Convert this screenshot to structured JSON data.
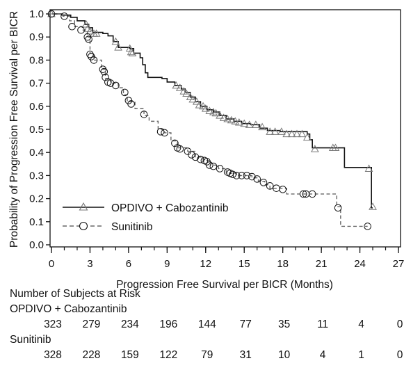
{
  "chart_data": {
    "type": "line",
    "subtype": "kaplan-meier",
    "title": "",
    "xlabel": "Progression Free Survival per BICR (Months)",
    "ylabel": "Probability of Progression Free Survival per BICR",
    "xlim": [
      0,
      27
    ],
    "ylim": [
      0.0,
      1.0
    ],
    "x_ticks": [
      0,
      3,
      6,
      9,
      12,
      15,
      18,
      21,
      24,
      27
    ],
    "x_tick_labels": [
      "0",
      "3",
      "6",
      "9",
      "12",
      "15",
      "18",
      "21",
      "24",
      "27"
    ],
    "x_minor_step": 1,
    "y_ticks": [
      0.0,
      0.1,
      0.2,
      0.3,
      0.4,
      0.5,
      0.6,
      0.7,
      0.8,
      0.9,
      1.0
    ],
    "y_tick_labels": [
      "0.0",
      "0.1",
      "0.2",
      "0.3",
      "0.4",
      "0.5",
      "0.6",
      "0.7",
      "0.8",
      "0.9",
      "1.0"
    ],
    "grid": false,
    "legend_position": "bottom-left",
    "series": [
      {
        "name": "OPDIVO + Cabozantinib",
        "line_style": "solid",
        "marker": "triangle",
        "color": "#111111",
        "marker_color": "#777777",
        "steps": [
          [
            0,
            1.0
          ],
          [
            0.8,
            0.995
          ],
          [
            1.5,
            0.985
          ],
          [
            2.0,
            0.97
          ],
          [
            2.6,
            0.955
          ],
          [
            2.9,
            0.94
          ],
          [
            3.2,
            0.92
          ],
          [
            4.0,
            0.915
          ],
          [
            4.4,
            0.905
          ],
          [
            4.8,
            0.88
          ],
          [
            5.2,
            0.855
          ],
          [
            6.1,
            0.85
          ],
          [
            6.4,
            0.83
          ],
          [
            6.9,
            0.81
          ],
          [
            7.1,
            0.78
          ],
          [
            7.3,
            0.745
          ],
          [
            7.5,
            0.725
          ],
          [
            8.6,
            0.72
          ],
          [
            9.0,
            0.705
          ],
          [
            9.6,
            0.69
          ],
          [
            10.1,
            0.675
          ],
          [
            10.4,
            0.66
          ],
          [
            10.8,
            0.64
          ],
          [
            11.2,
            0.62
          ],
          [
            11.6,
            0.6
          ],
          [
            12.1,
            0.585
          ],
          [
            12.6,
            0.575
          ],
          [
            13.1,
            0.56
          ],
          [
            13.6,
            0.545
          ],
          [
            14.2,
            0.535
          ],
          [
            14.8,
            0.525
          ],
          [
            15.5,
            0.52
          ],
          [
            16.2,
            0.505
          ],
          [
            16.8,
            0.495
          ],
          [
            17.8,
            0.49
          ],
          [
            19.9,
            0.48
          ],
          [
            20.1,
            0.455
          ],
          [
            20.3,
            0.42
          ],
          [
            22.8,
            0.335
          ],
          [
            24.9,
            0.16
          ]
        ],
        "end": 25.0,
        "censors": [
          [
            0,
            1.0
          ],
          [
            2.7,
            0.955
          ],
          [
            2.8,
            0.935
          ],
          [
            3.0,
            0.925
          ],
          [
            3.3,
            0.915
          ],
          [
            3.5,
            0.915
          ],
          [
            5.0,
            0.88
          ],
          [
            5.2,
            0.855
          ],
          [
            6.1,
            0.85
          ],
          [
            6.2,
            0.835
          ],
          [
            6.3,
            0.83
          ],
          [
            9.7,
            0.69
          ],
          [
            10.0,
            0.68
          ],
          [
            10.3,
            0.665
          ],
          [
            10.5,
            0.655
          ],
          [
            10.8,
            0.64
          ],
          [
            11.0,
            0.63
          ],
          [
            11.3,
            0.62
          ],
          [
            11.5,
            0.605
          ],
          [
            11.8,
            0.6
          ],
          [
            12.0,
            0.59
          ],
          [
            12.3,
            0.58
          ],
          [
            12.6,
            0.575
          ],
          [
            12.8,
            0.57
          ],
          [
            13.1,
            0.56
          ],
          [
            13.4,
            0.55
          ],
          [
            13.7,
            0.545
          ],
          [
            14.0,
            0.54
          ],
          [
            14.3,
            0.535
          ],
          [
            14.6,
            0.53
          ],
          [
            15.0,
            0.525
          ],
          [
            15.4,
            0.52
          ],
          [
            15.9,
            0.52
          ],
          [
            16.4,
            0.51
          ],
          [
            17.0,
            0.49
          ],
          [
            17.4,
            0.49
          ],
          [
            17.9,
            0.49
          ],
          [
            18.3,
            0.48
          ],
          [
            18.7,
            0.48
          ],
          [
            19.1,
            0.48
          ],
          [
            19.5,
            0.48
          ],
          [
            19.9,
            0.465
          ],
          [
            20.5,
            0.415
          ],
          [
            21.9,
            0.42
          ],
          [
            22.1,
            0.42
          ],
          [
            24.7,
            0.33
          ],
          [
            25.0,
            0.165
          ]
        ]
      },
      {
        "name": "Sunitinib",
        "line_style": "dashed",
        "marker": "circle",
        "color": "#666666",
        "marker_color": "#111111",
        "steps": [
          [
            0,
            1.0
          ],
          [
            0.9,
            0.99
          ],
          [
            1.4,
            0.97
          ],
          [
            1.8,
            0.945
          ],
          [
            2.4,
            0.93
          ],
          [
            2.8,
            0.9
          ],
          [
            3.0,
            0.83
          ],
          [
            3.3,
            0.8
          ],
          [
            3.9,
            0.76
          ],
          [
            4.2,
            0.72
          ],
          [
            4.6,
            0.7
          ],
          [
            5.2,
            0.68
          ],
          [
            5.6,
            0.65
          ],
          [
            5.9,
            0.62
          ],
          [
            6.5,
            0.59
          ],
          [
            7.2,
            0.56
          ],
          [
            7.6,
            0.535
          ],
          [
            8.3,
            0.5
          ],
          [
            8.8,
            0.485
          ],
          [
            9.3,
            0.45
          ],
          [
            9.8,
            0.42
          ],
          [
            10.6,
            0.405
          ],
          [
            11.2,
            0.38
          ],
          [
            11.8,
            0.365
          ],
          [
            12.4,
            0.345
          ],
          [
            13.0,
            0.33
          ],
          [
            13.6,
            0.31
          ],
          [
            14.4,
            0.3
          ],
          [
            15.6,
            0.29
          ],
          [
            16.1,
            0.275
          ],
          [
            16.6,
            0.26
          ],
          [
            17.0,
            0.245
          ],
          [
            18.3,
            0.22
          ],
          [
            22.2,
            0.165
          ],
          [
            22.5,
            0.08
          ]
        ],
        "end": 24.6,
        "censors": [
          [
            0,
            1.0
          ],
          [
            1.0,
            0.99
          ],
          [
            1.6,
            0.945
          ],
          [
            2.3,
            0.93
          ],
          [
            2.8,
            0.9
          ],
          [
            2.9,
            0.89
          ],
          [
            3.0,
            0.825
          ],
          [
            3.1,
            0.815
          ],
          [
            3.3,
            0.8
          ],
          [
            4.0,
            0.76
          ],
          [
            4.1,
            0.75
          ],
          [
            4.2,
            0.725
          ],
          [
            4.4,
            0.705
          ],
          [
            4.6,
            0.7
          ],
          [
            5.0,
            0.69
          ],
          [
            5.7,
            0.66
          ],
          [
            6.0,
            0.625
          ],
          [
            6.2,
            0.61
          ],
          [
            7.2,
            0.565
          ],
          [
            8.5,
            0.49
          ],
          [
            8.8,
            0.485
          ],
          [
            9.6,
            0.44
          ],
          [
            9.8,
            0.42
          ],
          [
            10.0,
            0.415
          ],
          [
            10.6,
            0.405
          ],
          [
            10.9,
            0.39
          ],
          [
            11.2,
            0.38
          ],
          [
            11.6,
            0.37
          ],
          [
            11.9,
            0.365
          ],
          [
            12.1,
            0.36
          ],
          [
            12.3,
            0.345
          ],
          [
            12.6,
            0.34
          ],
          [
            13.1,
            0.33
          ],
          [
            13.7,
            0.315
          ],
          [
            13.9,
            0.31
          ],
          [
            14.1,
            0.305
          ],
          [
            14.4,
            0.3
          ],
          [
            14.8,
            0.3
          ],
          [
            15.2,
            0.3
          ],
          [
            15.6,
            0.295
          ],
          [
            16.0,
            0.285
          ],
          [
            16.5,
            0.27
          ],
          [
            17.0,
            0.255
          ],
          [
            17.5,
            0.245
          ],
          [
            18.0,
            0.24
          ],
          [
            19.6,
            0.22
          ],
          [
            19.8,
            0.22
          ],
          [
            20.3,
            0.22
          ],
          [
            22.3,
            0.16
          ],
          [
            24.6,
            0.08
          ]
        ]
      }
    ]
  },
  "risk_table": {
    "title": "Number of Subjects at Risk",
    "time_points": [
      0,
      3,
      6,
      9,
      12,
      15,
      18,
      21,
      24,
      27
    ],
    "rows": [
      {
        "label": "OPDIVO + Cabozantinib",
        "values": [
          "323",
          "279",
          "234",
          "196",
          "144",
          "77",
          "35",
          "11",
          "4",
          "0"
        ]
      },
      {
        "label": "Sunitinib",
        "values": [
          "328",
          "228",
          "159",
          "122",
          "79",
          "31",
          "10",
          "4",
          "1",
          "0"
        ]
      }
    ]
  }
}
